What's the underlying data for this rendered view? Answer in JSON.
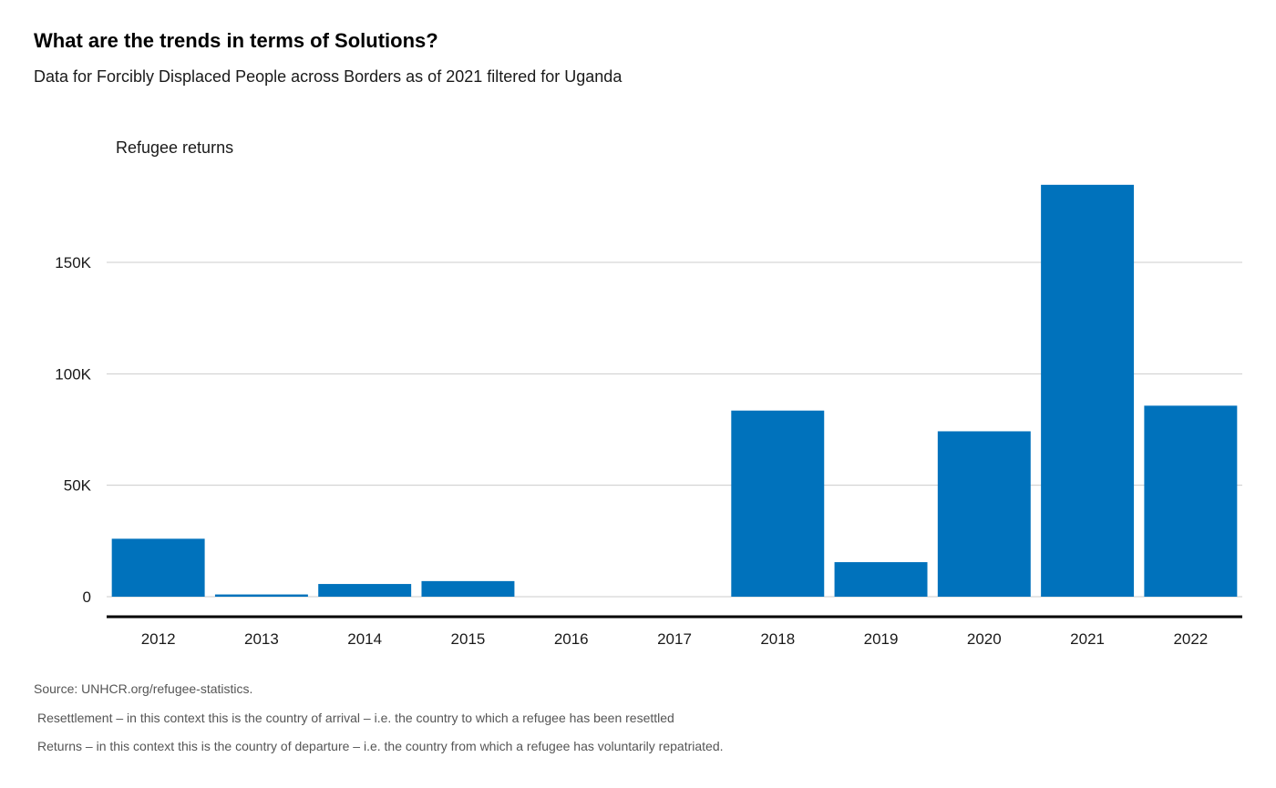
{
  "header": {
    "title": "What are the trends in terms of Solutions?",
    "subtitle": "Data for Forcibly Displaced People across Borders as of 2021 filtered for Uganda"
  },
  "footer": {
    "source": "Source: UNHCR.org/refugee-statistics.",
    "note_resettlement": "Resettlement – in this context this is the country of arrival – i.e. the country to which a refugee has been resettled",
    "note_returns": "Returns – in this context this is the country of departure – i.e. the country from which a refugee has voluntarily repatriated."
  },
  "colors": {
    "bar": "#0072bc",
    "grid": "#cccccc",
    "axis": "#000000"
  },
  "chart_data": {
    "type": "bar",
    "ylabel": "Refugee returns",
    "categories": [
      "2012",
      "2013",
      "2014",
      "2015",
      "2016",
      "2017",
      "2018",
      "2019",
      "2020",
      "2021",
      "2022"
    ],
    "values": [
      26000,
      1000,
      5700,
      7000,
      0,
      0,
      83500,
      15500,
      74200,
      184800,
      85700
    ],
    "ylim": [
      0,
      185000
    ],
    "yticks": [
      0,
      50000,
      100000,
      150000
    ],
    "ytick_labels": [
      "0",
      "50K",
      "100K",
      "150K"
    ],
    "grid": true,
    "legend": "none"
  }
}
